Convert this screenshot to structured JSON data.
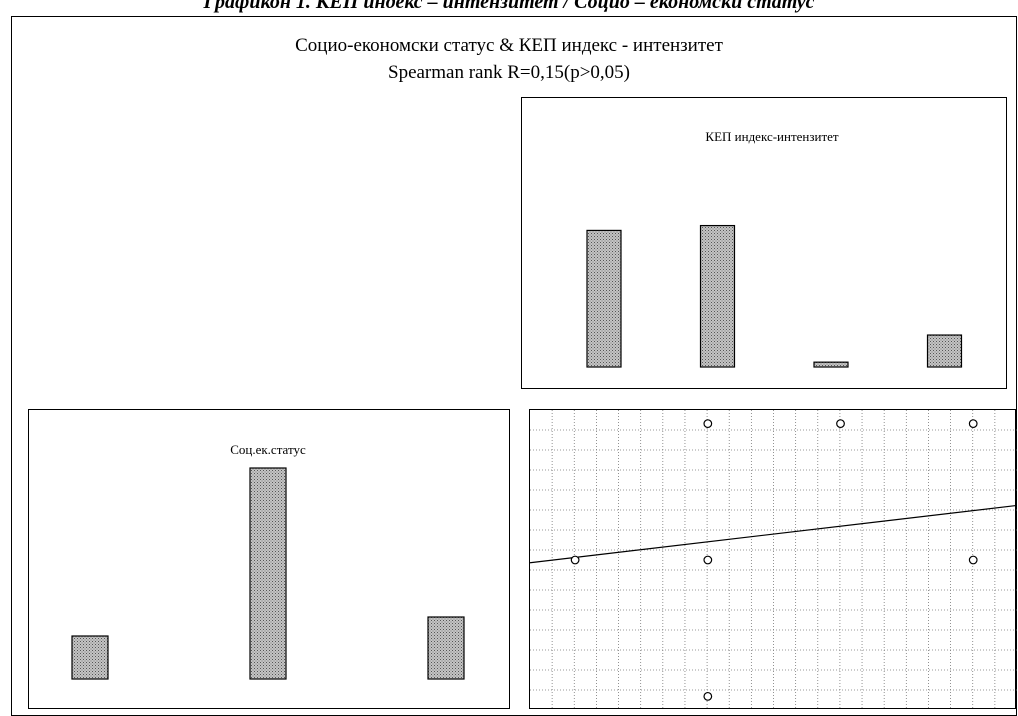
{
  "caption": "Графикон 1. КЕП индекс – интензитет / Социо – економски статус",
  "title": "Социо-економски статус & КЕП индекс - интензитет",
  "subtitle": "Spearman rank R=0,15(p>0,05)",
  "chart_data": [
    {
      "type": "bar",
      "title": "КЕП индекс-интензитет",
      "categories": [
        "",
        "",
        "",
        ""
      ],
      "values": [
        141,
        146,
        5,
        33
      ],
      "ylim": [
        0,
        160
      ],
      "grid": false
    },
    {
      "type": "bar",
      "title": "Соц.ек.статус",
      "categories": [
        "",
        "",
        ""
      ],
      "values": [
        43,
        211,
        62
      ],
      "ylim": [
        0,
        240
      ],
      "grid": false
    },
    {
      "type": "scatter",
      "title": "",
      "x": [
        1,
        2,
        2,
        2,
        3,
        4,
        4
      ],
      "y": [
        2,
        3,
        2,
        1,
        3,
        3,
        2
      ],
      "xlim": [
        0.66,
        4.33
      ],
      "ylim": [
        0.9,
        3.1
      ],
      "trendline": {
        "x": [
          0.66,
          4.33
        ],
        "y": [
          1.98,
          2.4
        ]
      },
      "grid": true
    }
  ]
}
